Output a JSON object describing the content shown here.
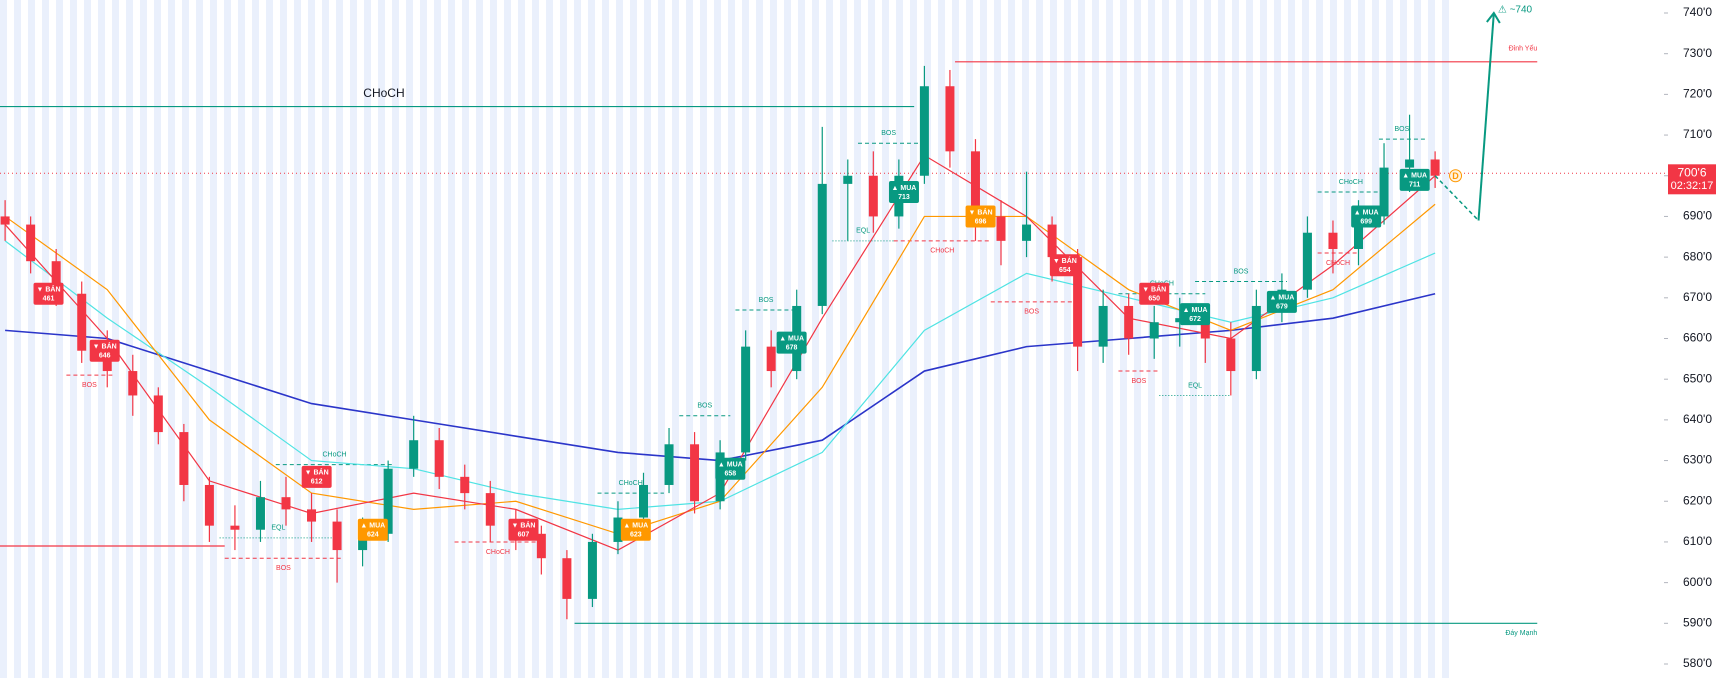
{
  "chart_data": {
    "type": "candlestick",
    "open": [
      690,
      688,
      679,
      671,
      657,
      652,
      646,
      637,
      624,
      614,
      613,
      621,
      618,
      615,
      608,
      612,
      628,
      635,
      626,
      622,
      614,
      612,
      606,
      596,
      610,
      616,
      624,
      634,
      620,
      632,
      658,
      652,
      668,
      698,
      700,
      690,
      700,
      722,
      706,
      690,
      684,
      688,
      680,
      658,
      668,
      660,
      664,
      665,
      660,
      652,
      668,
      672,
      686,
      682,
      690,
      702,
      704
    ],
    "high": [
      694,
      690,
      682,
      674,
      662,
      656,
      648,
      639,
      626,
      619,
      625,
      626,
      622,
      618,
      616,
      630,
      641,
      638,
      629,
      625,
      618,
      614,
      608,
      612,
      620,
      627,
      638,
      637,
      635,
      662,
      662,
      672,
      712,
      704,
      706,
      704,
      727,
      726,
      709,
      694,
      701,
      690,
      682,
      672,
      671,
      668,
      670,
      668,
      664,
      672,
      676,
      690,
      689,
      694,
      708,
      715,
      706
    ],
    "low": [
      684,
      676,
      668,
      654,
      648,
      641,
      634,
      620,
      610,
      608,
      610,
      614,
      610,
      600,
      604,
      610,
      626,
      623,
      618,
      610,
      608,
      602,
      591,
      594,
      607,
      613,
      622,
      617,
      618,
      630,
      648,
      650,
      666,
      684,
      686,
      687,
      698,
      702,
      684,
      678,
      680,
      674,
      652,
      654,
      656,
      655,
      658,
      654,
      646,
      650,
      664,
      670,
      676,
      678,
      688,
      696,
      697
    ],
    "close": [
      688,
      679,
      671,
      657,
      652,
      646,
      637,
      624,
      614,
      613,
      621,
      618,
      615,
      608,
      612,
      628,
      635,
      626,
      622,
      614,
      612,
      606,
      596,
      610,
      616,
      624,
      634,
      620,
      632,
      658,
      652,
      668,
      698,
      700,
      690,
      700,
      722,
      706,
      690,
      684,
      688,
      680,
      658,
      668,
      660,
      664,
      665,
      660,
      652,
      668,
      672,
      686,
      682,
      690,
      702,
      704,
      700
    ],
    "up_color": "#089981",
    "down_color": "#f23645",
    "xlim": [
      -0.2,
      67
    ],
    "ylim": [
      580,
      740
    ],
    "yticks": [
      {
        "value": 580,
        "label": "580'0"
      },
      {
        "value": 590,
        "label": "590'0"
      },
      {
        "value": 600,
        "label": "600'0"
      },
      {
        "value": 610,
        "label": "610'0"
      },
      {
        "value": 620,
        "label": "620'0"
      },
      {
        "value": 630,
        "label": "630'0"
      },
      {
        "value": 640,
        "label": "640'0"
      },
      {
        "value": 650,
        "label": "650'0"
      },
      {
        "value": 660,
        "label": "660'0"
      },
      {
        "value": 670,
        "label": "670'0"
      },
      {
        "value": 680,
        "label": "680'0"
      },
      {
        "value": 690,
        "label": "690'0"
      },
      {
        "value": 700,
        "label": "700'0"
      },
      {
        "value": 710,
        "label": "710'0"
      },
      {
        "value": 720,
        "label": "720'0"
      },
      {
        "value": 730,
        "label": "730'0"
      },
      {
        "value": 740,
        "label": "740'0"
      }
    ],
    "series": [
      {
        "color": "#2b35c9",
        "x": [
          0,
          4,
          8,
          12,
          16,
          20,
          24,
          28,
          32,
          36,
          40,
          44,
          48,
          52,
          56
        ],
        "values": [
          662,
          660,
          652,
          644,
          640,
          636,
          632,
          630,
          635,
          652,
          658,
          660,
          662,
          665,
          671
        ]
      },
      {
        "color": "#4fe3e3",
        "x": [
          0,
          4,
          8,
          12,
          16,
          20,
          24,
          28,
          32,
          36,
          40,
          44,
          48,
          52,
          56
        ],
        "values": [
          684,
          665,
          648,
          630,
          628,
          622,
          618,
          620,
          632,
          662,
          676,
          670,
          664,
          670,
          681
        ]
      },
      {
        "color": "#ff9800",
        "x": [
          0,
          4,
          8,
          12,
          16,
          20,
          24,
          28,
          32,
          36,
          40,
          44,
          48,
          52,
          56
        ],
        "values": [
          690,
          672,
          640,
          622,
          618,
          620,
          612,
          620,
          648,
          690,
          690,
          672,
          662,
          672,
          693
        ]
      },
      {
        "color": "#f23645",
        "x": [
          0,
          4,
          8,
          12,
          16,
          20,
          24,
          28,
          32,
          36,
          40,
          44,
          48,
          52,
          56
        ],
        "values": [
          688,
          660,
          625,
          617,
          622,
          618,
          608,
          622,
          665,
          705,
          690,
          665,
          660,
          678,
          700
        ]
      }
    ],
    "levels": [
      {
        "value": 717,
        "from": -0.2,
        "to": 35.6,
        "color": "#089981",
        "label": "CHoCH"
      },
      {
        "value": 728,
        "from": 37.2,
        "to": 60,
        "color": "#f23645",
        "label": "Đỉnh Yếu"
      },
      {
        "value": 590,
        "from": 22.3,
        "to": 60,
        "color": "#089981",
        "label": "Đáy Mạnh"
      },
      {
        "value": 609,
        "from": -0.2,
        "to": 8.6,
        "color": "#f23645"
      }
    ],
    "structures": [
      {
        "label": "BOS",
        "value": 651,
        "from": 2.4,
        "to": 4.2,
        "color": "#f23645"
      },
      {
        "label": "BOS",
        "value": 606,
        "from": 8.6,
        "to": 13.2,
        "color": "#f23645"
      },
      {
        "label": "EQL",
        "value": 611,
        "from": 8.4,
        "to": 13,
        "color": "#089981"
      },
      {
        "label": "CHoCH",
        "value": 629,
        "from": 10.6,
        "to": 15.2,
        "color": "#089981"
      },
      {
        "label": "CHoCH",
        "value": 610,
        "from": 17.6,
        "to": 21,
        "color": "#f23645"
      },
      {
        "label": "CHoCH",
        "value": 622,
        "from": 23.2,
        "to": 25.8,
        "color": "#089981"
      },
      {
        "label": "BOS",
        "value": 641,
        "from": 26.4,
        "to": 28.4,
        "color": "#089981"
      },
      {
        "label": "BOS",
        "value": 667,
        "from": 28.6,
        "to": 31,
        "color": "#089981"
      },
      {
        "label": "BOS",
        "value": 708,
        "from": 33.4,
        "to": 35.8,
        "color": "#089981"
      },
      {
        "label": "EQL",
        "value": 684,
        "from": 32.4,
        "to": 34.8,
        "color": "#089981"
      },
      {
        "label": "CHoCH",
        "value": 684,
        "from": 34.8,
        "to": 38.6,
        "color": "#f23645"
      },
      {
        "label": "BOS",
        "value": 669,
        "from": 38.6,
        "to": 41.8,
        "color": "#f23645"
      },
      {
        "label": "CHoCH",
        "value": 671,
        "from": 43.6,
        "to": 47,
        "color": "#089981"
      },
      {
        "label": "BOS",
        "value": 652,
        "from": 43.6,
        "to": 45.2,
        "color": "#f23645"
      },
      {
        "label": "EQL",
        "value": 646,
        "from": 45.2,
        "to": 48,
        "color": "#089981"
      },
      {
        "label": "BOS",
        "value": 674,
        "from": 46.6,
        "to": 50.2,
        "color": "#089981"
      },
      {
        "label": "CHoCH",
        "value": 681,
        "from": 51.4,
        "to": 53,
        "color": "#f23645"
      },
      {
        "label": "CHoCH",
        "value": 696,
        "from": 51.4,
        "to": 54,
        "color": "#089981"
      },
      {
        "label": "BOS",
        "value": 709,
        "from": 53.8,
        "to": 55.6,
        "color": "#089981"
      }
    ],
    "signals": [
      {
        "x": 1.7,
        "y": 671,
        "label": "▼ BÁN",
        "text": "461",
        "color": "#f23645"
      },
      {
        "x": 3.9,
        "y": 657,
        "label": "▼ BÁN",
        "text": "646",
        "color": "#f23645"
      },
      {
        "x": 12.2,
        "y": 626,
        "label": "▼ BÁN",
        "text": "612",
        "color": "#f23645"
      },
      {
        "x": 14.4,
        "y": 613,
        "label": "▲ MUA",
        "text": "624",
        "color": "#ff9800"
      },
      {
        "x": 20.3,
        "y": 613,
        "label": "▼ BÁN",
        "text": "607",
        "color": "#f23645"
      },
      {
        "x": 24.7,
        "y": 613,
        "label": "▲ MUA",
        "text": "623",
        "color": "#ff9800"
      },
      {
        "x": 28.4,
        "y": 628,
        "label": "▲ MUA",
        "text": "658",
        "color": "#089981"
      },
      {
        "x": 30.8,
        "y": 659,
        "label": "▲ MUA",
        "text": "678",
        "color": "#089981"
      },
      {
        "x": 35.2,
        "y": 696,
        "label": "▲ MUA",
        "text": "713",
        "color": "#089981"
      },
      {
        "x": 38.2,
        "y": 690,
        "label": "▼ BÁN",
        "text": "696",
        "color": "#ff9800"
      },
      {
        "x": 41.5,
        "y": 678,
        "label": "▼ BÁN",
        "text": "654",
        "color": "#f23645"
      },
      {
        "x": 45,
        "y": 671,
        "label": "▼ BÁN",
        "text": "650",
        "color": "#f23645"
      },
      {
        "x": 46.6,
        "y": 666,
        "label": "▲ MUA",
        "text": "672",
        "color": "#089981"
      },
      {
        "x": 50,
        "y": 669,
        "label": "▲ MUA",
        "text": "679",
        "color": "#089981"
      },
      {
        "x": 53.3,
        "y": 690,
        "label": "▲ MUA",
        "text": "699",
        "color": "#089981"
      },
      {
        "x": 55.2,
        "y": 699,
        "label": "▲ MUA",
        "text": "711",
        "color": "#089981"
      }
    ],
    "projection": {
      "label": "⚠ ~740",
      "color": "#089981",
      "x": [
        56,
        57.7,
        58.3
      ],
      "values": [
        700,
        689,
        740
      ]
    },
    "marker": {
      "label": "D",
      "x": 56.8,
      "y": 700,
      "color": "#ff9800"
    },
    "last": {
      "value": 700.6,
      "label": "700'6",
      "time": "02:32:17",
      "color": "#f23645"
    }
  }
}
